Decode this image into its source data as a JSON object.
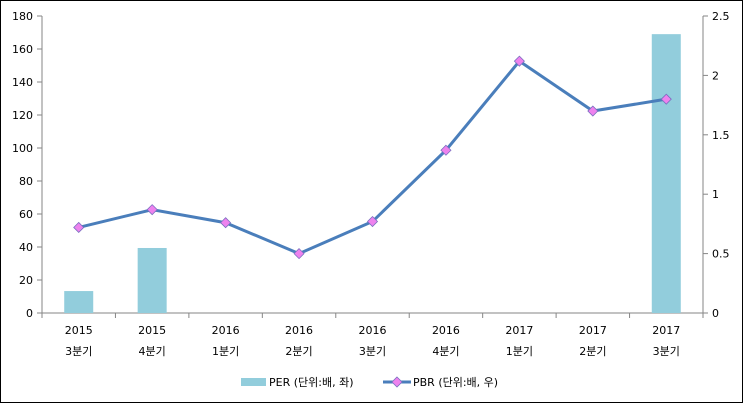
{
  "chart_data": {
    "type": "bar+line",
    "categories": [
      [
        "2015",
        "3분기"
      ],
      [
        "2015",
        "4분기"
      ],
      [
        "2016",
        "1분기"
      ],
      [
        "2016",
        "2분기"
      ],
      [
        "2016",
        "3분기"
      ],
      [
        "2016",
        "4분기"
      ],
      [
        "2017",
        "1분기"
      ],
      [
        "2017",
        "2분기"
      ],
      [
        "2017",
        "3분기"
      ]
    ],
    "series": [
      {
        "name": "PER (단위:배, 좌)",
        "type": "bar",
        "axis": "left",
        "color": "#92CDDC",
        "values": [
          13.3,
          39.4,
          null,
          null,
          null,
          null,
          null,
          null,
          169
        ]
      },
      {
        "name": "PBR (단위:배, 우)",
        "type": "line",
        "axis": "right",
        "color": "#4A7EBB",
        "marker_color": "#EE82EE",
        "values": [
          0.72,
          0.87,
          0.76,
          0.5,
          0.77,
          1.37,
          2.12,
          1.7,
          1.8
        ]
      }
    ],
    "left_axis": {
      "min": 0,
      "max": 180,
      "ticks": [
        "0",
        "20",
        "40",
        "60",
        "80",
        "100",
        "120",
        "140",
        "160",
        "180"
      ]
    },
    "right_axis": {
      "min": 0,
      "max": 2.5,
      "ticks": [
        "0",
        "0.5",
        "1",
        "1.5",
        "2",
        "2.5"
      ]
    },
    "grid": false,
    "legend_position": "bottom"
  }
}
